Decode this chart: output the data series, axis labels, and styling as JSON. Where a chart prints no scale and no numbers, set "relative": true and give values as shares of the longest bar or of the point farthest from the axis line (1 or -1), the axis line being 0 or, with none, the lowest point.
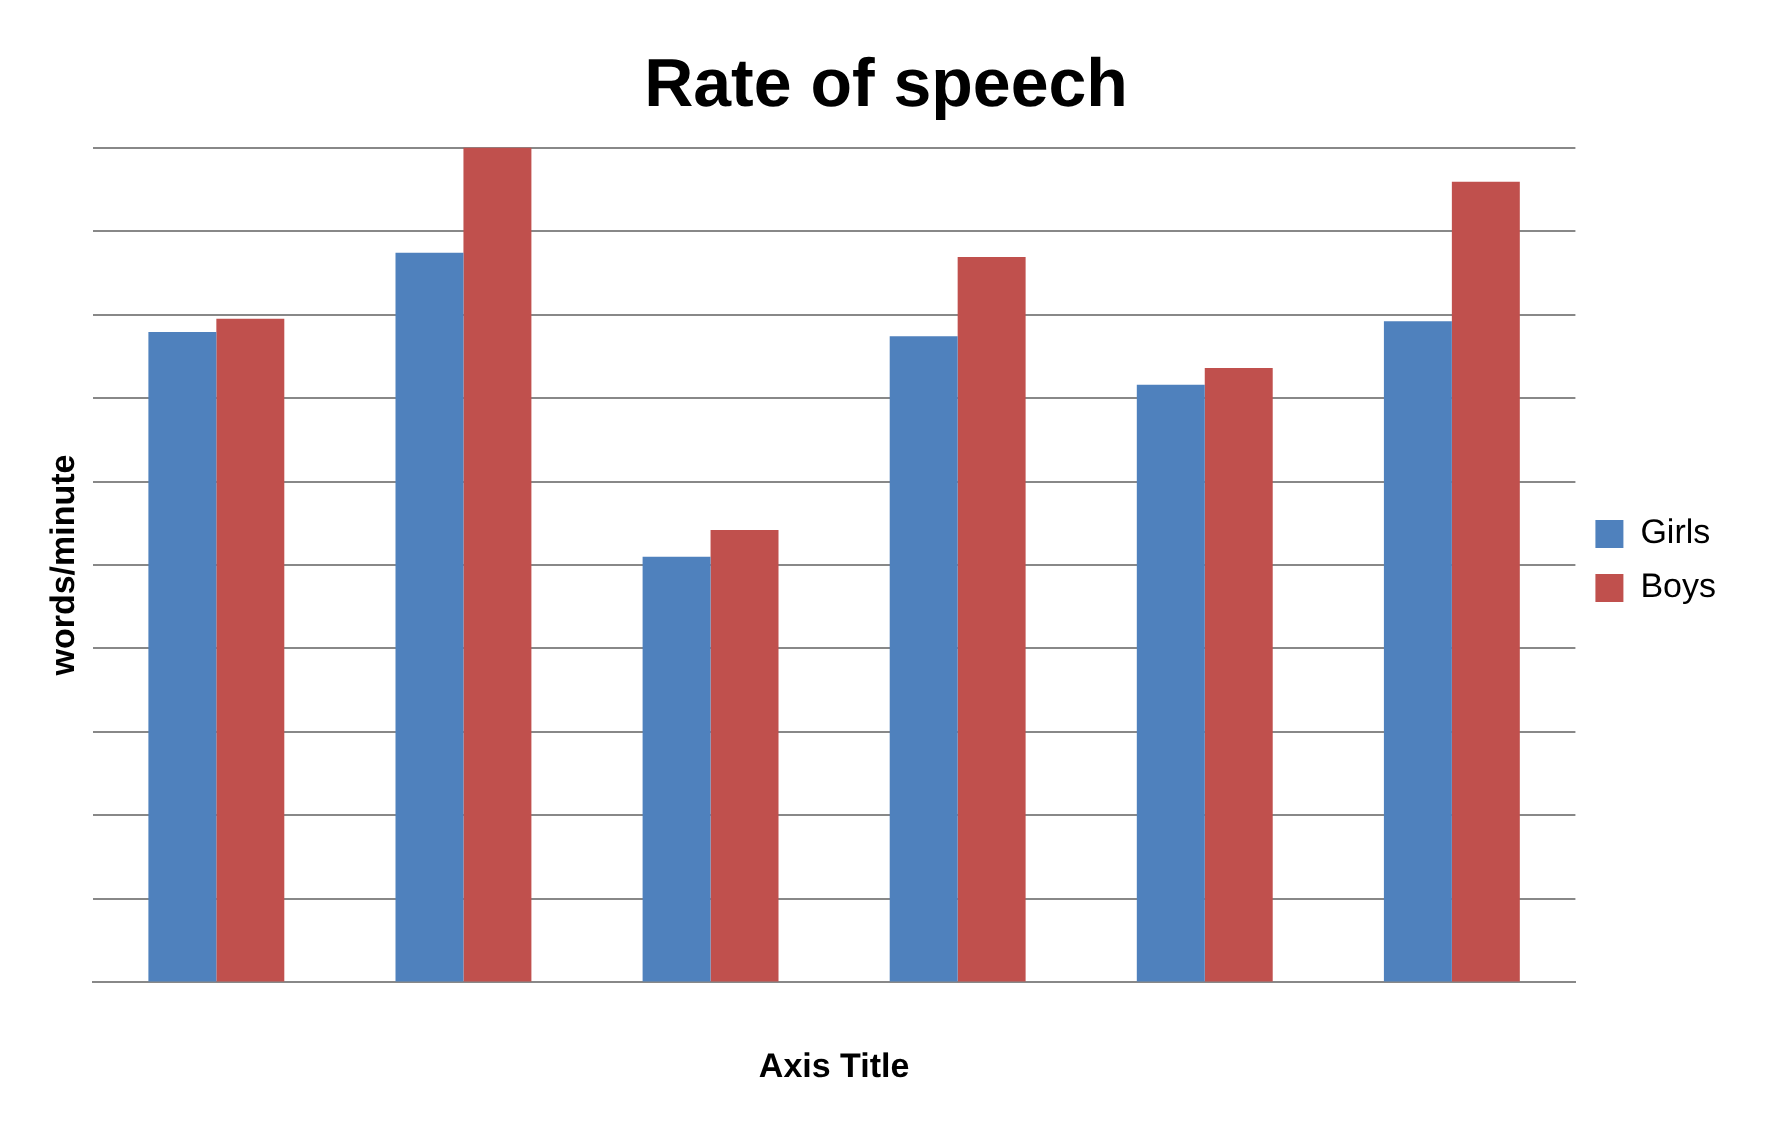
{
  "chart_data": {
    "type": "bar",
    "title": "Rate of speech",
    "xlabel": "Axis Title",
    "ylabel": "words/minute",
    "relative": true,
    "grid": "y",
    "legend": "right",
    "categories": [
      null,
      null,
      null,
      null,
      null,
      null
    ],
    "series": [
      {
        "name": "Girls",
        "color": "#4f81bd",
        "values": [
          0.779,
          0.874,
          0.51,
          0.774,
          0.716,
          0.792
        ]
      },
      {
        "name": "Boys",
        "color": "#c0504d",
        "values": [
          0.795,
          1,
          0.542,
          0.869,
          0.736,
          0.959
        ]
      }
    ]
  }
}
